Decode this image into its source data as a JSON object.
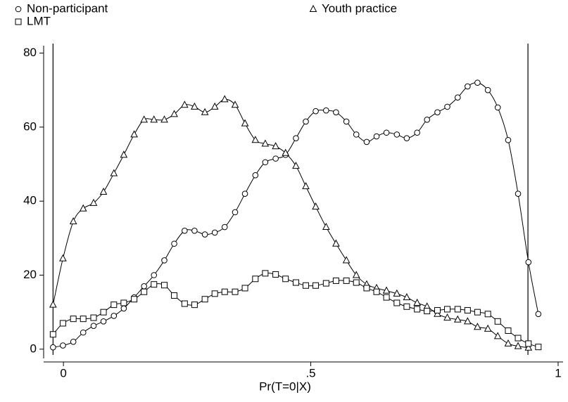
{
  "chart_data": {
    "type": "line",
    "x_label": "Pr(T=0|X)",
    "x": [
      -0.021,
      -0.001,
      0.02,
      0.04,
      0.061,
      0.081,
      0.102,
      0.122,
      0.143,
      0.163,
      0.183,
      0.204,
      0.224,
      0.245,
      0.265,
      0.286,
      0.306,
      0.326,
      0.347,
      0.367,
      0.388,
      0.408,
      0.429,
      0.449,
      0.47,
      0.49,
      0.51,
      0.531,
      0.551,
      0.572,
      0.592,
      0.613,
      0.633,
      0.653,
      0.674,
      0.694,
      0.715,
      0.735,
      0.756,
      0.776,
      0.797,
      0.817,
      0.837,
      0.858,
      0.878,
      0.899,
      0.919,
      0.94,
      0.96
    ],
    "series": [
      {
        "name": "Non-participant",
        "marker": "circle",
        "color": "#000000",
        "values": [
          0.5,
          1,
          2,
          4.5,
          6.3,
          7.5,
          9,
          11,
          14,
          17,
          20,
          24,
          28.5,
          32,
          32,
          31,
          31.5,
          33,
          37,
          42,
          47,
          50.5,
          51.5,
          52.5,
          57,
          61.5,
          64.3,
          64.5,
          64,
          61.5,
          58,
          56,
          57.5,
          58.5,
          58,
          57,
          58.5,
          62,
          64,
          65.5,
          68,
          71,
          72,
          70,
          65.3,
          56.5,
          42,
          23.5,
          9.5
        ]
      },
      {
        "name": "Youth practice",
        "marker": "triangle",
        "color": "#000000",
        "values": [
          12,
          24.5,
          34.5,
          38,
          39.5,
          42.5,
          47.5,
          52.5,
          58,
          62,
          62,
          62,
          63.5,
          66,
          65.5,
          64,
          65.5,
          67.5,
          66,
          61,
          56.5,
          55.5,
          54.8,
          53,
          49.5,
          44,
          38.5,
          33,
          28.5,
          24,
          20,
          17.5,
          16.5,
          15.8,
          15,
          14,
          12.5,
          11.5,
          9.5,
          8.5,
          8,
          7.5,
          6,
          5.5,
          3.5,
          1.5,
          0.8,
          0.4,
          null
        ]
      },
      {
        "name": "LMT",
        "marker": "square",
        "color": "#000000",
        "values": [
          4,
          7,
          8.2,
          8.2,
          8.5,
          10,
          12,
          12.5,
          13.5,
          15.5,
          17.5,
          17.3,
          14.5,
          12.3,
          12,
          13.5,
          15,
          15.5,
          15.5,
          16.5,
          19,
          20.5,
          20.2,
          19,
          18,
          17.2,
          17.2,
          17.8,
          18.5,
          18.5,
          18,
          16.5,
          15.5,
          14,
          12.5,
          11.5,
          10.8,
          10.3,
          10.5,
          10.8,
          10.8,
          10.5,
          10,
          9.5,
          7.5,
          5,
          3,
          1.5,
          0.6
        ]
      }
    ],
    "xlines": [
      -0.021,
      0.939
    ],
    "xlim": [
      -0.04,
      1.01
    ],
    "ylim": [
      -2.5,
      82
    ],
    "xticks": [
      0,
      {
        "value": 0.5,
        "label": ".5"
      },
      1
    ],
    "yticks": [
      0,
      20,
      40,
      60,
      80
    ]
  }
}
